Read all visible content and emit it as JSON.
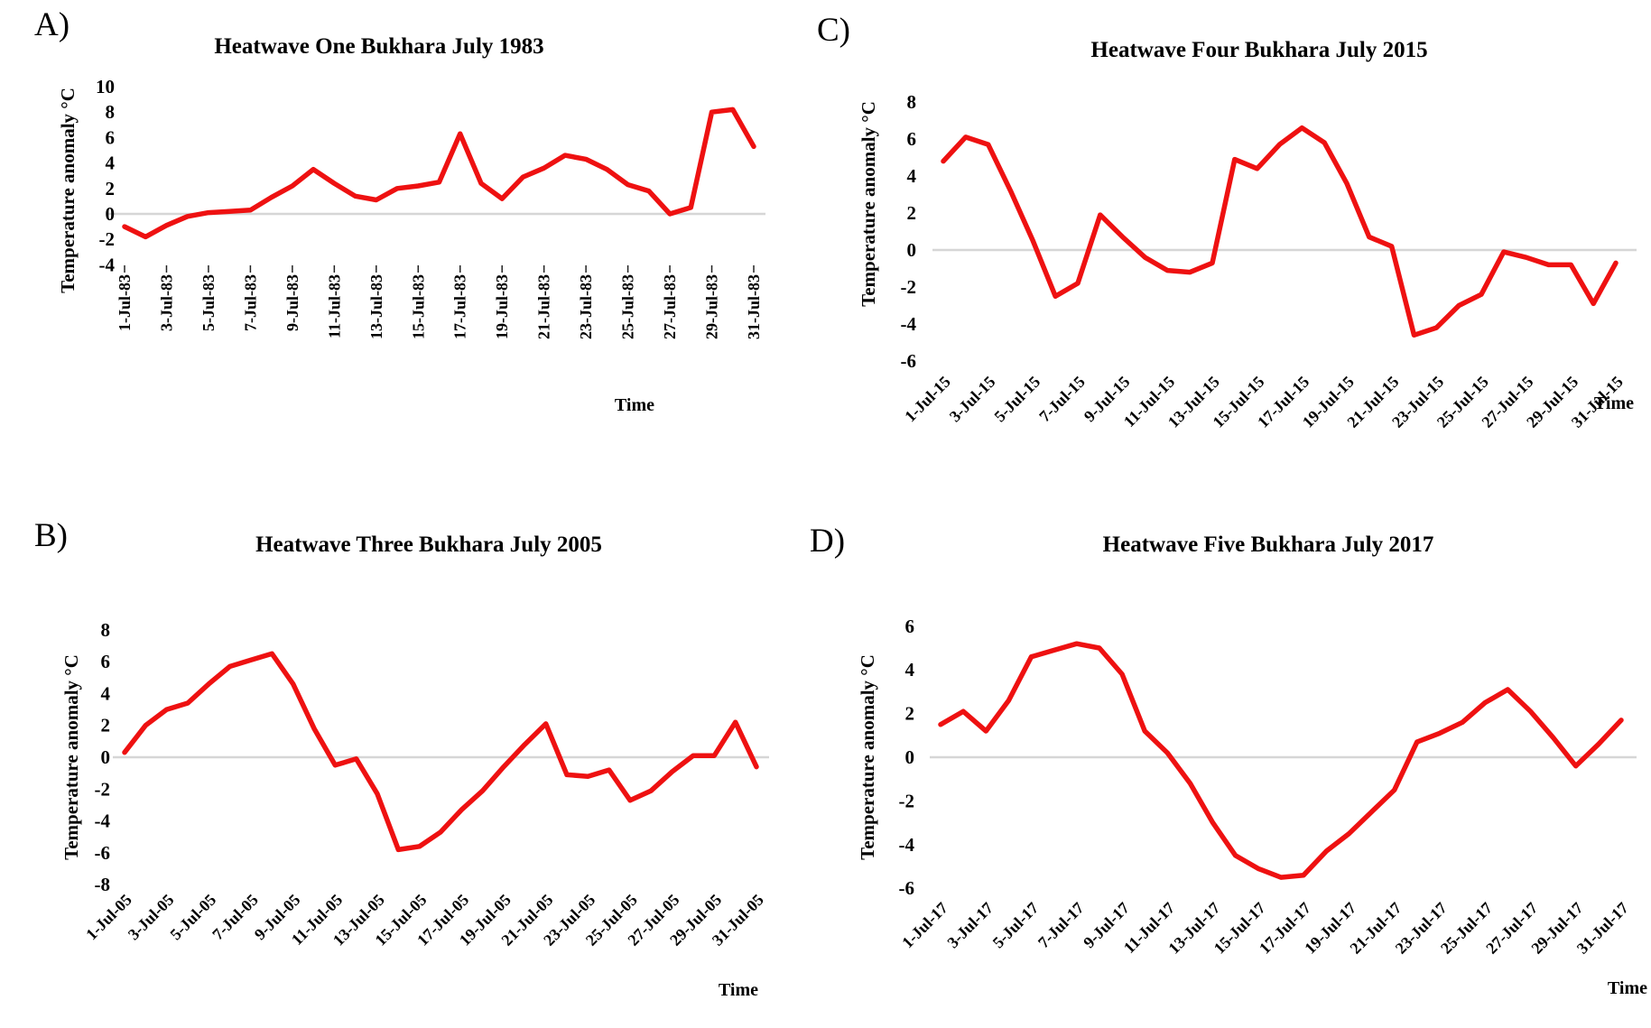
{
  "page": {
    "background": "#ffffff"
  },
  "colors": {
    "line_red": "#ee1111",
    "zero_line": "#d6d6d6",
    "text": "#000000"
  },
  "chart_data": [
    {
      "type": "line",
      "panel_label": "A)",
      "title": "Heatwave One Bukhara July 1983",
      "ylabel": "Temperature anomaly °C",
      "xlabel": "Time",
      "ylim": [
        -4,
        10
      ],
      "y_ticks": [
        10,
        8,
        6,
        4,
        2,
        0,
        -2,
        -4
      ],
      "grid": "zero-line-only",
      "legend": "none",
      "x_unit": "daily, 1-31 July 1983",
      "x_tick_step_days": 2,
      "x_label_rotation_deg": 90,
      "x_tick_labels": [
        "1-Jul-83",
        "3-Jul-83",
        "5-Jul-83",
        "7-Jul-83",
        "9-Jul-83",
        "11-Jul-83",
        "13-Jul-83",
        "15-Jul-83",
        "17-Jul-83",
        "19-Jul-83",
        "21-Jul-83",
        "23-Jul-83",
        "25-Jul-83",
        "27-Jul-83",
        "29-Jul-83",
        "31-Jul-83"
      ],
      "values": [
        -1.0,
        -1.8,
        -0.9,
        -0.2,
        0.1,
        0.2,
        0.3,
        1.3,
        2.2,
        3.5,
        2.4,
        1.4,
        1.1,
        2.0,
        2.2,
        2.5,
        6.3,
        2.4,
        1.2,
        2.9,
        3.6,
        4.6,
        4.3,
        3.5,
        2.3,
        1.8,
        0.0,
        0.5,
        8.0,
        8.2,
        5.3
      ]
    },
    {
      "type": "line",
      "panel_label": "B)",
      "title": "Heatwave Three Bukhara July 2005",
      "ylabel": "Temperature anomaly °C",
      "xlabel": "Time",
      "ylim": [
        -8,
        8
      ],
      "y_ticks": [
        8,
        6,
        4,
        2,
        0,
        -2,
        -4,
        -6,
        -8
      ],
      "grid": "zero-line-only",
      "legend": "none",
      "x_unit": "daily, 1-31 July 2005",
      "x_tick_step_days": 2,
      "x_label_rotation_deg": 45,
      "x_tick_labels": [
        "1-Jul-05",
        "3-Jul-05",
        "5-Jul-05",
        "7-Jul-05",
        "9-Jul-05",
        "11-Jul-05",
        "13-Jul-05",
        "15-Jul-05",
        "17-Jul-05",
        "19-Jul-05",
        "21-Jul-05",
        "23-Jul-05",
        "25-Jul-05",
        "27-Jul-05",
        "29-Jul-05",
        "31-Jul-05"
      ],
      "values": [
        0.3,
        2.0,
        3.0,
        3.4,
        4.6,
        5.7,
        6.1,
        6.5,
        4.6,
        1.8,
        -0.5,
        -0.1,
        -2.3,
        -5.8,
        -5.6,
        -4.7,
        -3.3,
        -2.1,
        -0.6,
        0.8,
        2.1,
        -1.1,
        -1.2,
        -0.8,
        -2.7,
        -2.1,
        -0.9,
        0.1,
        0.1,
        2.2,
        -0.6
      ]
    },
    {
      "type": "line",
      "panel_label": "C)",
      "title": "Heatwave Four Bukhara July 2015",
      "ylabel": "Temperature anomaly °C",
      "xlabel": "Time",
      "ylim": [
        -6,
        8
      ],
      "y_ticks": [
        8,
        6,
        4,
        2,
        0,
        -2,
        -4,
        -6
      ],
      "grid": "zero-line-only",
      "legend": "none",
      "x_unit": "daily, 1-31 July 2015",
      "x_tick_step_days": 2,
      "x_label_rotation_deg": 45,
      "x_tick_labels": [
        "1-Jul-15",
        "3-Jul-15",
        "5-Jul-15",
        "7-Jul-15",
        "9-Jul-15",
        "11-Jul-15",
        "13-Jul-15",
        "15-Jul-15",
        "17-Jul-15",
        "19-Jul-15",
        "21-Jul-15",
        "23-Jul-15",
        "25-Jul-15",
        "27-Jul-15",
        "29-Jul-15",
        "31-Jul-15"
      ],
      "values": [
        4.8,
        6.1,
        5.7,
        3.2,
        0.5,
        -2.5,
        -1.8,
        1.9,
        0.7,
        -0.4,
        -1.1,
        -1.2,
        -0.7,
        4.9,
        4.4,
        5.7,
        6.6,
        5.8,
        3.6,
        0.7,
        0.2,
        -4.6,
        -4.2,
        -3.0,
        -2.4,
        -0.1,
        -0.4,
        -0.8,
        -0.8,
        -2.9,
        -0.7
      ]
    },
    {
      "type": "line",
      "panel_label": "D)",
      "title": "Heatwave Five Bukhara July 2017",
      "ylabel": "Temperature anomaly °C",
      "xlabel": "Time",
      "ylim": [
        -6,
        6
      ],
      "y_ticks": [
        6,
        4,
        2,
        0,
        -2,
        -4,
        -6
      ],
      "grid": "zero-line-only",
      "legend": "none",
      "x_unit": "daily, 1-31 July 2017",
      "x_tick_step_days": 2,
      "x_label_rotation_deg": 45,
      "x_tick_labels": [
        "1-Jul-17",
        "3-Jul-17",
        "5-Jul-17",
        "7-Jul-17",
        "9-Jul-17",
        "11-Jul-17",
        "13-Jul-17",
        "15-Jul-17",
        "17-Jul-17",
        "19-Jul-17",
        "21-Jul-17",
        "23-Jul-17",
        "25-Jul-17",
        "27-Jul-17",
        "29-Jul-17",
        "31-Jul-17"
      ],
      "values": [
        1.5,
        2.1,
        1.2,
        2.6,
        4.6,
        4.9,
        5.2,
        5.0,
        3.8,
        1.2,
        0.2,
        -1.2,
        -3.0,
        -4.5,
        -5.1,
        -5.5,
        -5.4,
        -4.3,
        -3.5,
        -2.5,
        -1.5,
        0.7,
        1.1,
        1.6,
        2.5,
        3.1,
        2.1,
        0.9,
        -0.4,
        0.6,
        1.7
      ]
    }
  ]
}
